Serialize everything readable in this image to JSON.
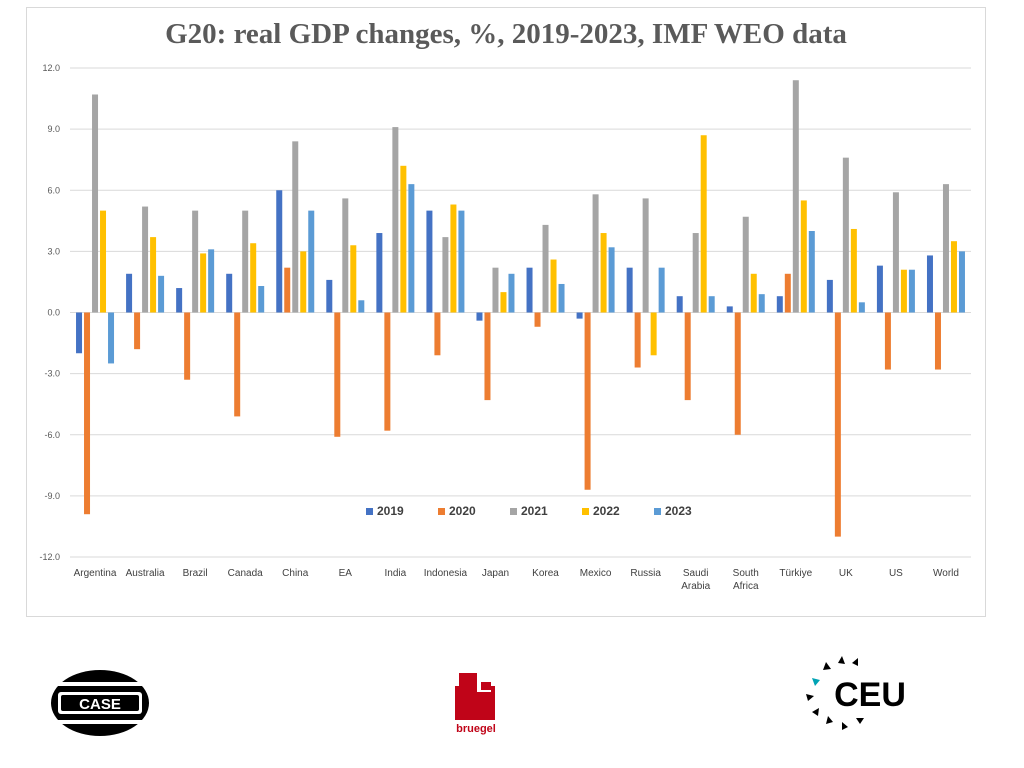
{
  "colors": {
    "2019": "#4472c4",
    "2020": "#ed7d31",
    "2021": "#a5a5a5",
    "2022": "#ffc000",
    "2023": "#5b9bd5",
    "grid": "#d9d9d9",
    "axis_text": "#595959",
    "title": "#5a5a5a"
  },
  "chart_data": {
    "type": "bar",
    "title": "G20: real GDP changes, %, 2019-2023, IMF WEO data",
    "xlabel": "",
    "ylabel": "",
    "ylim": [
      -12.0,
      12.0
    ],
    "yticks": [
      "12.0",
      "9.0",
      "6.0",
      "3.0",
      "0.0",
      "-3.0",
      "-6.0",
      "-9.0",
      "-12.0"
    ],
    "ytick_values": [
      12,
      9,
      6,
      3,
      0,
      -3,
      -6,
      -9,
      -12
    ],
    "grid": true,
    "legend_position": "bottom-center",
    "categories": [
      [
        "Argentina"
      ],
      [
        "Australia"
      ],
      [
        "Brazil"
      ],
      [
        "Canada"
      ],
      [
        "China"
      ],
      [
        "EA"
      ],
      [
        "India"
      ],
      [
        "Indonesia"
      ],
      [
        "Japan"
      ],
      [
        "Korea"
      ],
      [
        "Mexico"
      ],
      [
        "Russia"
      ],
      [
        "Saudi",
        "Arabia"
      ],
      [
        "South",
        "Africa"
      ],
      [
        "Türkiye"
      ],
      [
        "UK"
      ],
      [
        "US"
      ],
      [
        "World"
      ]
    ],
    "series": [
      {
        "name": "2019",
        "values": [
          -2.0,
          1.9,
          1.2,
          1.9,
          6.0,
          1.6,
          3.9,
          5.0,
          -0.4,
          2.2,
          -0.3,
          2.2,
          0.8,
          0.3,
          0.8,
          1.6,
          2.3,
          2.8
        ]
      },
      {
        "name": "2020",
        "values": [
          -9.9,
          -1.8,
          -3.3,
          -5.1,
          2.2,
          -6.1,
          -5.8,
          -2.1,
          -4.3,
          -0.7,
          -8.7,
          -2.7,
          -4.3,
          -6.0,
          1.9,
          -11.0,
          -2.8,
          -2.8
        ]
      },
      {
        "name": "2021",
        "values": [
          10.7,
          5.2,
          5.0,
          5.0,
          8.4,
          5.6,
          9.1,
          3.7,
          2.2,
          4.3,
          5.8,
          5.6,
          3.9,
          4.7,
          11.4,
          7.6,
          5.9,
          6.3
        ]
      },
      {
        "name": "2022",
        "values": [
          5.0,
          3.7,
          2.9,
          3.4,
          3.0,
          3.3,
          7.2,
          5.3,
          1.0,
          2.6,
          3.9,
          -2.1,
          8.7,
          1.9,
          5.5,
          4.1,
          2.1,
          3.5
        ]
      },
      {
        "name": "2023",
        "values": [
          -2.5,
          1.8,
          3.1,
          1.3,
          5.0,
          0.6,
          6.3,
          5.0,
          1.9,
          1.4,
          3.2,
          2.2,
          0.8,
          0.9,
          4.0,
          0.5,
          2.1,
          3.0
        ]
      }
    ]
  },
  "logos": {
    "case": {
      "text": "CASE"
    },
    "bruegel": {
      "text": "bruegel"
    },
    "ceu": {
      "text": "CEU"
    }
  }
}
